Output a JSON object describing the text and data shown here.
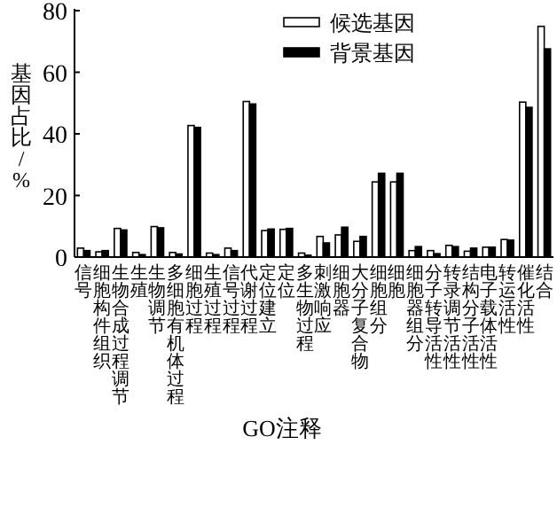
{
  "chart_data": {
    "type": "bar",
    "xlabel": "GO注释",
    "ylabel": "基因占比/%",
    "categories": [
      "信号",
      "细胞构件组织",
      "生物合成过程调节",
      "生殖",
      "生物调节",
      "多细胞有机体过程",
      "细胞过程",
      "生殖过程",
      "信号过程",
      "代谢过程",
      "定位建立",
      "定位",
      "多生物过程",
      "刺激响应",
      "细胞器",
      "大分子复合物",
      "细胞组分",
      "细胞",
      "细胞器组分",
      "分子转导活性",
      "转录调节活性",
      "结构分子活性",
      "电子载体活性",
      "转运活性",
      "催化活性",
      "结合"
    ],
    "series": [
      {
        "name": "候选基因",
        "color": "#ffffff",
        "values": [
          2.9,
          1.7,
          9.3,
          1.5,
          9.9,
          1.5,
          42.7,
          1.3,
          2.9,
          50.5,
          8.6,
          9.0,
          1.3,
          6.7,
          7.2,
          5.1,
          24.4,
          24.4,
          2.1,
          2.1,
          3.8,
          1.9,
          3.2,
          5.7,
          50.3,
          74.9
        ]
      },
      {
        "name": "背景基因",
        "color": "#000000",
        "values": [
          2.1,
          2.1,
          8.8,
          0.8,
          9.5,
          1.0,
          42.1,
          0.8,
          2.1,
          49.7,
          9.1,
          9.3,
          0.6,
          4.6,
          9.7,
          6.7,
          27.2,
          27.2,
          3.4,
          1.1,
          3.4,
          2.9,
          3.2,
          5.5,
          48.6,
          67.6
        ]
      }
    ],
    "ylim": [
      0,
      80
    ],
    "yticks": [
      0,
      20,
      40,
      60,
      80
    ],
    "legend": "top right"
  }
}
